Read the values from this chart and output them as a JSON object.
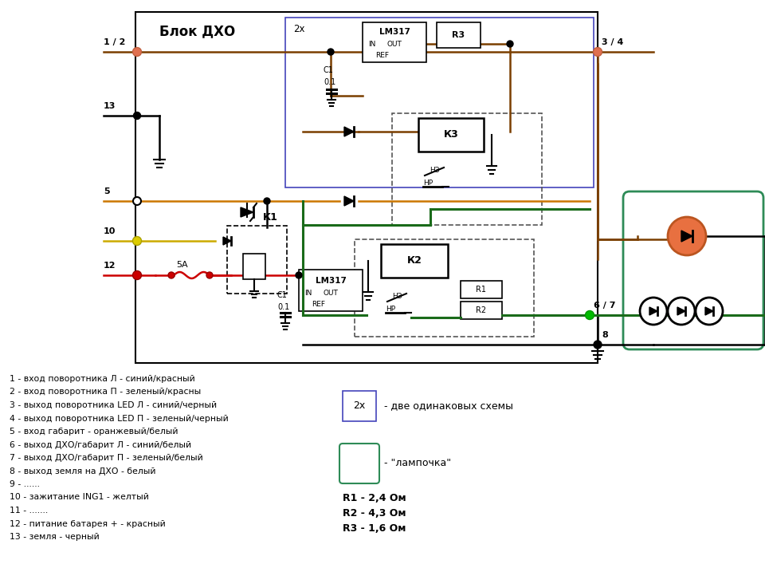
{
  "title": "Блок ДХО",
  "bg_color": "#ffffff",
  "legend_items": [
    "1 - вход поворотника Л - синий/красный",
    "2 - вход поворотника П - зеленый/красны",
    "3 - выход поворотника LED Л - синий/черный",
    "4 - выход поворотника LED П - зеленый/черный",
    "5 - вход габарит - оранжевый/белый",
    "6 - выход ДХО/габарит Л - синий/белый",
    "7 - выход ДХО/габарит П - зеленый/белый",
    "8 - выход земля на ДХО - белый",
    "9 - ......",
    "10 - зажитание ING1 - желтый",
    "11 - .......",
    "12 - питание батарея + - красный",
    "13 - земля - черный"
  ],
  "resistor_labels": [
    "R1 - 2,4 Ом",
    "R2 - 4,3 Ом",
    "R3 - 1,6 Ом"
  ],
  "wire_brown": "#7B3F00",
  "wire_green": "#1A6B1A",
  "wire_black": "#000000",
  "wire_blue": "#00008B",
  "wire_red": "#CC0000",
  "wire_orange": "#CC7700",
  "wire_yellow": "#CCAA00",
  "node_salmon": "#E07050",
  "node_green": "#00BB00",
  "node_yellow": "#DDCC00",
  "node_black": "#000000",
  "led_orange": "#E87040",
  "green_border": "#2E8B57"
}
